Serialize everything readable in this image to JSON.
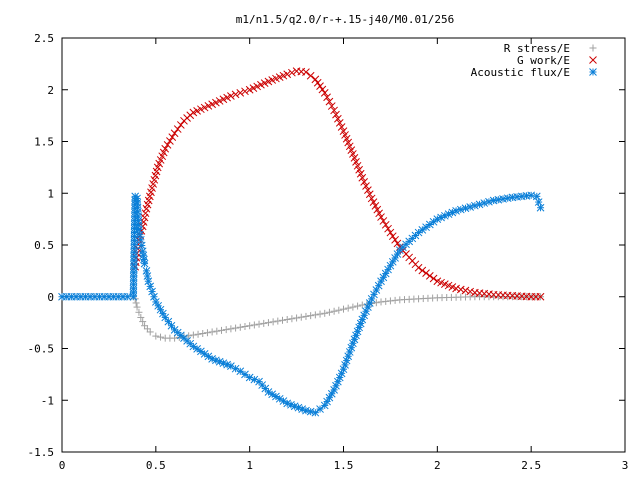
{
  "chart_data": {
    "type": "scatter",
    "title": "m1/n1.5/q2.0/r-+.15-j40/M0.01/256",
    "xlabel": "",
    "ylabel": "",
    "xlim": [
      0,
      3
    ],
    "ylim": [
      -1.5,
      2.5
    ],
    "grid": false,
    "legend_position": "top-right",
    "x_ticks": [
      "0",
      "0.5",
      "1",
      "1.5",
      "2",
      "2.5",
      "3"
    ],
    "y_ticks": [
      "2.5",
      "2",
      "1.5",
      "1",
      "0.5",
      "0",
      "-0.5",
      "-1",
      "-1.5"
    ],
    "series": [
      {
        "name": "R stress/E",
        "marker": "plus",
        "color": "#a0a0a0",
        "points": [
          [
            0.39,
            -0.02
          ],
          [
            0.4,
            -0.1
          ],
          [
            0.42,
            -0.2
          ],
          [
            0.44,
            -0.28
          ],
          [
            0.47,
            -0.34
          ],
          [
            0.5,
            -0.38
          ],
          [
            0.55,
            -0.4
          ],
          [
            0.6,
            -0.4
          ],
          [
            0.7,
            -0.37
          ],
          [
            0.8,
            -0.34
          ],
          [
            0.9,
            -0.31
          ],
          [
            1.0,
            -0.28
          ],
          [
            1.1,
            -0.25
          ],
          [
            1.2,
            -0.22
          ],
          [
            1.3,
            -0.19
          ],
          [
            1.4,
            -0.16
          ],
          [
            1.5,
            -0.12
          ],
          [
            1.6,
            -0.08
          ],
          [
            1.7,
            -0.05
          ],
          [
            1.8,
            -0.03
          ],
          [
            1.9,
            -0.02
          ],
          [
            2.0,
            -0.01
          ],
          [
            2.1,
            -0.005
          ],
          [
            2.2,
            0.0
          ],
          [
            2.3,
            0.0
          ],
          [
            2.4,
            0.0
          ],
          [
            2.5,
            0.0
          ],
          [
            2.55,
            0.0
          ]
        ]
      },
      {
        "name": "G work/E",
        "marker": "cross",
        "color": "#cc0000",
        "points": [
          [
            0.39,
            0.29
          ],
          [
            0.4,
            0.42
          ],
          [
            0.41,
            0.55
          ],
          [
            0.43,
            0.68
          ],
          [
            0.45,
            0.85
          ],
          [
            0.48,
            1.05
          ],
          [
            0.51,
            1.25
          ],
          [
            0.55,
            1.43
          ],
          [
            0.6,
            1.58
          ],
          [
            0.65,
            1.7
          ],
          [
            0.7,
            1.78
          ],
          [
            0.8,
            1.86
          ],
          [
            0.9,
            1.94
          ],
          [
            1.0,
            2.0
          ],
          [
            1.1,
            2.08
          ],
          [
            1.2,
            2.15
          ],
          [
            1.25,
            2.18
          ],
          [
            1.3,
            2.17
          ],
          [
            1.35,
            2.1
          ],
          [
            1.4,
            1.97
          ],
          [
            1.45,
            1.8
          ],
          [
            1.5,
            1.6
          ],
          [
            1.55,
            1.38
          ],
          [
            1.6,
            1.15
          ],
          [
            1.65,
            0.95
          ],
          [
            1.7,
            0.77
          ],
          [
            1.75,
            0.62
          ],
          [
            1.8,
            0.48
          ],
          [
            1.9,
            0.28
          ],
          [
            2.0,
            0.15
          ],
          [
            2.1,
            0.08
          ],
          [
            2.2,
            0.04
          ],
          [
            2.3,
            0.02
          ],
          [
            2.4,
            0.01
          ],
          [
            2.5,
            0.0
          ],
          [
            2.55,
            0.0
          ]
        ]
      },
      {
        "name": "Acoustic flux/E",
        "marker": "star",
        "color": "#0a7fd8",
        "points": [
          [
            0.0,
            0.0
          ],
          [
            0.05,
            0.0
          ],
          [
            0.1,
            0.0
          ],
          [
            0.15,
            0.0
          ],
          [
            0.2,
            0.0
          ],
          [
            0.25,
            0.0
          ],
          [
            0.3,
            0.0
          ],
          [
            0.35,
            0.0
          ],
          [
            0.38,
            0.0
          ],
          [
            0.39,
            0.97
          ],
          [
            0.4,
            0.95
          ],
          [
            0.41,
            0.65
          ],
          [
            0.42,
            0.55
          ],
          [
            0.43,
            0.44
          ],
          [
            0.44,
            0.32
          ],
          [
            0.45,
            0.25
          ],
          [
            0.46,
            0.15
          ],
          [
            0.48,
            0.05
          ],
          [
            0.5,
            -0.05
          ],
          [
            0.55,
            -0.2
          ],
          [
            0.6,
            -0.32
          ],
          [
            0.7,
            -0.48
          ],
          [
            0.8,
            -0.6
          ],
          [
            0.9,
            -0.67
          ],
          [
            0.95,
            -0.72
          ],
          [
            1.0,
            -0.78
          ],
          [
            1.05,
            -0.82
          ],
          [
            1.1,
            -0.92
          ],
          [
            1.2,
            -1.03
          ],
          [
            1.3,
            -1.1
          ],
          [
            1.35,
            -1.12
          ],
          [
            1.4,
            -1.05
          ],
          [
            1.45,
            -0.9
          ],
          [
            1.5,
            -0.7
          ],
          [
            1.55,
            -0.45
          ],
          [
            1.6,
            -0.22
          ],
          [
            1.65,
            -0.02
          ],
          [
            1.7,
            0.15
          ],
          [
            1.75,
            0.3
          ],
          [
            1.8,
            0.45
          ],
          [
            1.9,
            0.62
          ],
          [
            2.0,
            0.75
          ],
          [
            2.1,
            0.83
          ],
          [
            2.2,
            0.88
          ],
          [
            2.3,
            0.93
          ],
          [
            2.4,
            0.96
          ],
          [
            2.45,
            0.97
          ],
          [
            2.5,
            0.98
          ],
          [
            2.53,
            0.97
          ],
          [
            2.55,
            0.86
          ]
        ]
      }
    ]
  }
}
